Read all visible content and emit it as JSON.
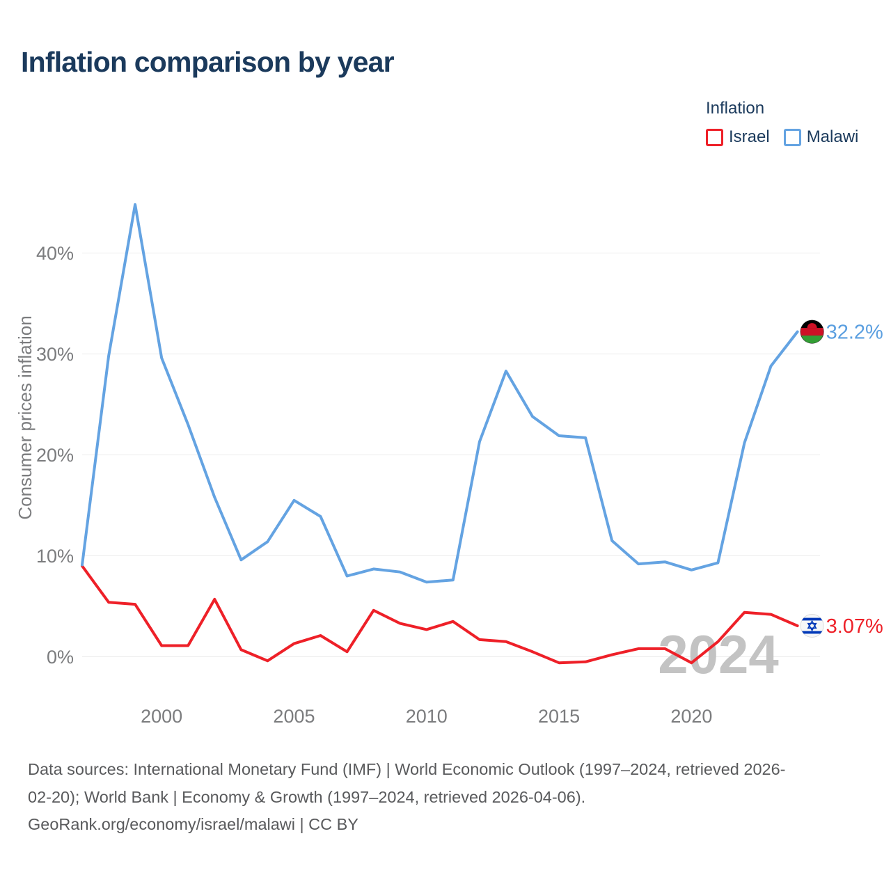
{
  "title": "Inflation comparison by year",
  "legend": {
    "title": "Inflation",
    "items": [
      {
        "label": "Israel",
        "color": "#ee2028"
      },
      {
        "label": "Malawi",
        "color": "#64a3e2"
      }
    ]
  },
  "y_axis": {
    "title": "Consumer prices inflation"
  },
  "watermark": "2024",
  "end_labels": [
    {
      "series": "Malawi",
      "text": "32.2%",
      "color": "#5b9fe0"
    },
    {
      "series": "Israel",
      "text": "3.07%",
      "color": "#ee2028"
    }
  ],
  "footer": {
    "line1": "Data sources: International Monetary Fund (IMF) | World Economic Outlook (1997–2024, retrieved 2026-",
    "line2": "02-20); World Bank | Economy & Growth (1997–2024, retrieved 2026-04-06).",
    "line3": "GeoRank.org/economy/israel/malawi | CC BY"
  },
  "chart_data": {
    "type": "line",
    "title": "Inflation comparison by year",
    "xlabel": "",
    "ylabel": "Consumer prices inflation",
    "x": [
      1997,
      1998,
      1999,
      2000,
      2001,
      2002,
      2003,
      2004,
      2005,
      2006,
      2007,
      2008,
      2009,
      2010,
      2011,
      2012,
      2013,
      2014,
      2015,
      2016,
      2017,
      2018,
      2019,
      2020,
      2021,
      2022,
      2023,
      2024
    ],
    "series": [
      {
        "name": "Israel",
        "color": "#ee2028",
        "values": [
          9.0,
          5.4,
          5.2,
          1.1,
          1.1,
          5.7,
          0.7,
          -0.4,
          1.3,
          2.1,
          0.5,
          4.6,
          3.3,
          2.7,
          3.5,
          1.7,
          1.5,
          0.5,
          -0.6,
          -0.5,
          0.2,
          0.8,
          0.8,
          -0.6,
          1.5,
          4.4,
          4.2,
          3.07
        ]
      },
      {
        "name": "Malawi",
        "color": "#64a3e2",
        "values": [
          9.1,
          29.8,
          44.8,
          29.6,
          23.0,
          15.8,
          9.6,
          11.4,
          15.5,
          13.9,
          8.0,
          8.7,
          8.4,
          7.4,
          7.6,
          21.3,
          28.3,
          23.8,
          21.9,
          21.7,
          11.5,
          9.2,
          9.4,
          8.6,
          9.3,
          21.2,
          28.8,
          32.2
        ]
      }
    ],
    "y_ticks": [
      {
        "value": 0,
        "label": "0%"
      },
      {
        "value": 10,
        "label": "10%"
      },
      {
        "value": 20,
        "label": "20%"
      },
      {
        "value": 30,
        "label": "30%"
      },
      {
        "value": 40,
        "label": "40%"
      }
    ],
    "x_ticks": [
      {
        "value": 2000,
        "label": "2000"
      },
      {
        "value": 2005,
        "label": "2005"
      },
      {
        "value": 2010,
        "label": "2010"
      },
      {
        "value": 2015,
        "label": "2015"
      },
      {
        "value": 2020,
        "label": "2020"
      }
    ],
    "ylim": [
      -2.5,
      47
    ],
    "xlim": [
      1997,
      2024
    ],
    "grid": "horizontal",
    "legend_position": "top-right"
  }
}
